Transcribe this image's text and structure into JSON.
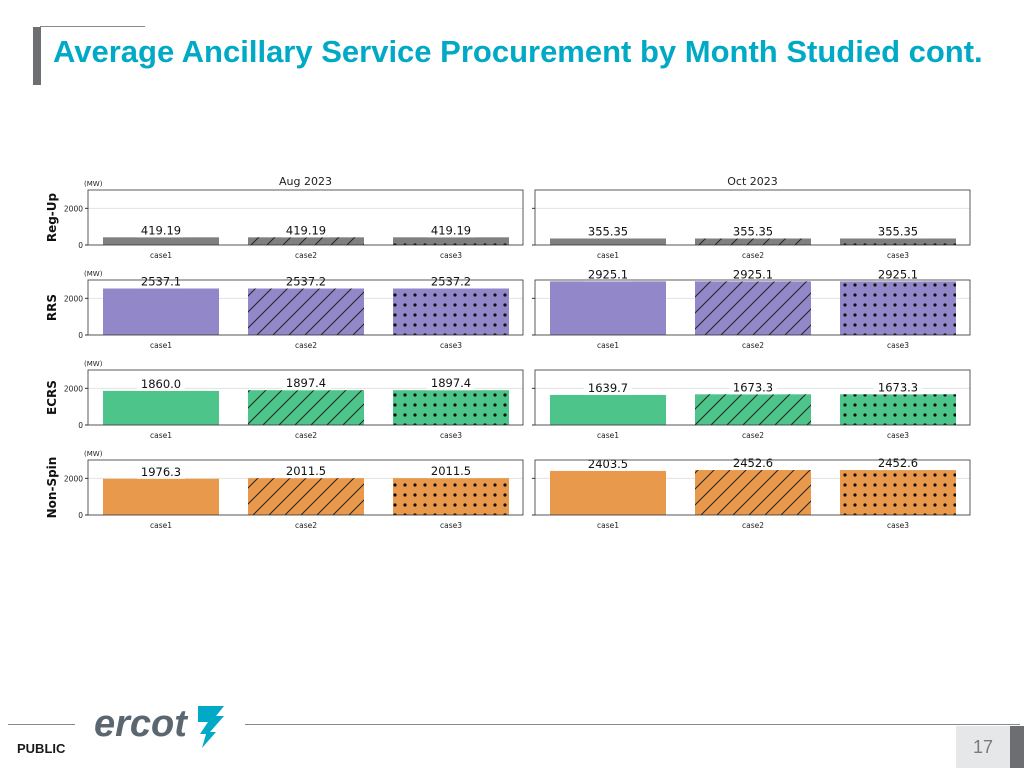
{
  "page": {
    "title": "Average Ancillary Service Procurement by Month Studied cont.",
    "footer_label": "PUBLIC",
    "page_number": "17",
    "logo_text": "ercot"
  },
  "chart_data": {
    "type": "bar",
    "unit_label": "(MW)",
    "categories": [
      "case1",
      "case2",
      "case3"
    ],
    "case_patterns": [
      "solid",
      "hatch",
      "dots"
    ],
    "months": [
      "Aug 2023",
      "Oct 2023"
    ],
    "ylim": [
      0,
      3000
    ],
    "yticks": [
      0,
      2000
    ],
    "grid": true,
    "rows": [
      {
        "service": "Reg-Up",
        "color": "#808080",
        "values": {
          "Aug 2023": [
            419.19,
            419.19,
            419.19
          ],
          "Oct 2023": [
            355.35,
            355.35,
            355.35
          ]
        },
        "labels": {
          "Aug 2023": [
            "419.19",
            "419.19",
            "419.19"
          ],
          "Oct 2023": [
            "355.35",
            "355.35",
            "355.35"
          ]
        }
      },
      {
        "service": "RRS",
        "color": "#9287c9",
        "values": {
          "Aug 2023": [
            2537.1,
            2537.2,
            2537.2
          ],
          "Oct 2023": [
            2925.1,
            2925.1,
            2925.1
          ]
        },
        "labels": {
          "Aug 2023": [
            "2537.1",
            "2537.2",
            "2537.2"
          ],
          "Oct 2023": [
            "2925.1",
            "2925.1",
            "2925.1"
          ]
        }
      },
      {
        "service": "ECRS",
        "color": "#4dc48a",
        "values": {
          "Aug 2023": [
            1860.0,
            1897.4,
            1897.4
          ],
          "Oct 2023": [
            1639.7,
            1673.3,
            1673.3
          ]
        },
        "labels": {
          "Aug 2023": [
            "1860.0",
            "1897.4",
            "1897.4"
          ],
          "Oct 2023": [
            "1639.7",
            "1673.3",
            "1673.3"
          ]
        }
      },
      {
        "service": "Non-Spin",
        "color": "#e8994b",
        "values": {
          "Aug 2023": [
            1976.3,
            2011.5,
            2011.5
          ],
          "Oct 2023": [
            2403.5,
            2452.6,
            2452.6
          ]
        },
        "labels": {
          "Aug 2023": [
            "1976.3",
            "2011.5",
            "2011.5"
          ],
          "Oct 2023": [
            "2403.5",
            "2452.6",
            "2452.6"
          ]
        }
      }
    ]
  }
}
